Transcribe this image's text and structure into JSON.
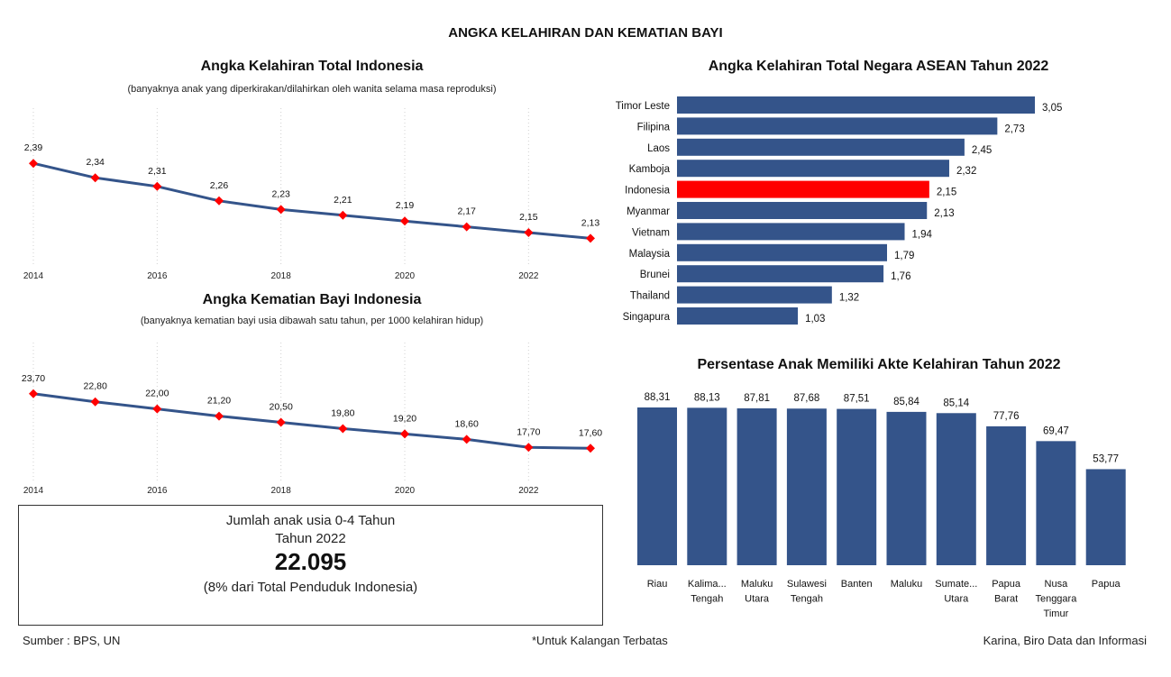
{
  "main_title": "ANGKA KELAHIRAN DAN KEMATIAN BAYI",
  "colors": {
    "bar": "#34548A",
    "highlight": "#FF0000",
    "line": "#34548A",
    "marker": "#FF0000"
  },
  "chart_data": [
    {
      "type": "line",
      "title": "Angka Kelahiran Total Indonesia",
      "subtitle": "(banyaknya anak yang diperkirakan/dilahirkan oleh wanita selama masa reproduksi)",
      "x": [
        2014,
        2015,
        2016,
        2017,
        2018,
        2019,
        2020,
        2021,
        2022,
        2023
      ],
      "values": [
        2.39,
        2.34,
        2.31,
        2.26,
        2.23,
        2.21,
        2.19,
        2.17,
        2.15,
        2.13
      ],
      "data_labels": [
        "2,39",
        "2,34",
        "2,31",
        "2,26",
        "2,23",
        "2,21",
        "2,19",
        "2,17",
        "2,15",
        "2,13"
      ],
      "x_tick_labels": [
        "2014",
        "2016",
        "2018",
        "2020",
        "2022"
      ],
      "xlabel": "",
      "ylabel": "",
      "ylim": [
        1.8,
        2.55
      ]
    },
    {
      "type": "line",
      "title": "Angka Kematian Bayi Indonesia",
      "subtitle": "(banyaknya kematian bayi usia dibawah satu tahun, per 1000 kelahiran hidup)",
      "x": [
        2014,
        2015,
        2016,
        2017,
        2018,
        2019,
        2020,
        2021,
        2022,
        2023
      ],
      "values": [
        23.7,
        22.8,
        22.0,
        21.2,
        20.5,
        19.8,
        19.2,
        18.6,
        17.7,
        17.6
      ],
      "data_labels": [
        "23,70",
        "22,80",
        "22,00",
        "21,20",
        "20,50",
        "19,80",
        "19,20",
        "18,60",
        "17,70",
        "17,60"
      ],
      "x_tick_labels": [
        "2014",
        "2016",
        "2018",
        "2020",
        "2022"
      ],
      "xlabel": "",
      "ylabel": "",
      "ylim": [
        14,
        26.5
      ]
    },
    {
      "type": "bar",
      "orientation": "horizontal",
      "title": "Angka Kelahiran Total Negara ASEAN Tahun 2022",
      "categories": [
        "Timor Leste",
        "Filipina",
        "Laos",
        "Kamboja",
        "Indonesia",
        "Myanmar",
        "Vietnam",
        "Malaysia",
        "Brunei",
        "Thailand",
        "Singapura"
      ],
      "values": [
        3.05,
        2.73,
        2.45,
        2.32,
        2.15,
        2.13,
        1.94,
        1.79,
        1.76,
        1.32,
        1.03
      ],
      "data_labels": [
        "3,05",
        "2,73",
        "2,45",
        "2,32",
        "2,15",
        "2,13",
        "1,94",
        "1,79",
        "1,76",
        "1,32",
        "1,03"
      ],
      "highlight": "Indonesia",
      "xlim": [
        0,
        3.05
      ]
    },
    {
      "type": "bar",
      "orientation": "vertical",
      "title": "Persentase Anak Memiliki Akte Kelahiran Tahun 2022",
      "categories": [
        [
          "Riau"
        ],
        [
          "Kalima...",
          "Tengah"
        ],
        [
          "Maluku",
          "Utara"
        ],
        [
          "Sulawesi",
          "Tengah"
        ],
        [
          "Banten"
        ],
        [
          "Maluku"
        ],
        [
          "Sumate...",
          "Utara"
        ],
        [
          "Papua",
          "Barat"
        ],
        [
          "Nusa",
          "Tenggara",
          "Timur"
        ],
        [
          "Papua"
        ]
      ],
      "values": [
        88.31,
        88.13,
        87.81,
        87.68,
        87.51,
        85.84,
        85.14,
        77.76,
        69.47,
        53.77
      ],
      "data_labels": [
        "88,31",
        "88,13",
        "87,81",
        "87,68",
        "87,51",
        "85,84",
        "85,14",
        "77,76",
        "69,47",
        "53,77"
      ],
      "ylim": [
        0,
        88.31
      ]
    }
  ],
  "summary_box": {
    "line1": "Jumlah anak usia 0-4 Tahun",
    "line2": "Tahun 2022",
    "value": "22.095",
    "note": "(8% dari Total Penduduk Indonesia)"
  },
  "footer": {
    "source": "Sumber : BPS, UN",
    "restricted": "*Untuk Kalangan Terbatas",
    "author": "Karina, Biro Data dan Informasi"
  }
}
